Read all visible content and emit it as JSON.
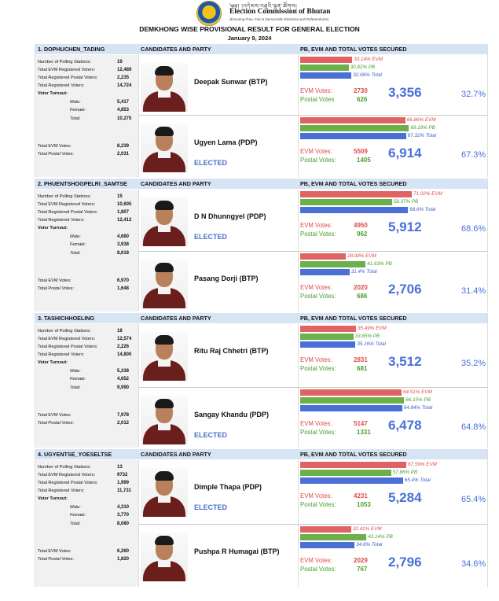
{
  "header": {
    "script_line": "༄༅། །འདེམས་འཐུའི་ལྷན་ཚོགས།",
    "org": "Election Commission of Bhutan",
    "tagline": "(Ensuring Free, Fair & Democratic Elections and Referendums)",
    "title": "DEMKHONG WISE PROVISIONAL RESULT FOR GENERAL ELECTION",
    "date": "January 9, 2024"
  },
  "colors": {
    "evm": "#e06363",
    "pb": "#6bb04a",
    "total": "#4a70d8"
  },
  "labels": {
    "candidates_party": "CANDIDATES AND PARTY",
    "pb_evm_total": "PB, EVM AND TOTAL VOTES SECURED",
    "evm_votes": "EVM Votes:",
    "postal_votes": "Postal Votes",
    "postal_votes_colon": "Postal Votes:",
    "elected": "ELECTED",
    "suffix_evm": "EVM",
    "suffix_pb": "PB",
    "suffix_total": "Total"
  },
  "sections": [
    {
      "name": "1. DOPHUCHEN_TADING",
      "stats": {
        "polling_label": "Number of Polling Stations:",
        "polling": "19",
        "evm_reg_label": "Total EVM Registered Voters:",
        "evm_reg": "12,489",
        "postal_reg_label": "Total Registered Postal Voters:",
        "postal_reg": "2,235",
        "reg_label": "Total Registered Voters:",
        "reg": "14,724",
        "turnout_label": "Voter Turnout:",
        "male_label": "Male:",
        "male": "5,417",
        "female_label": "Female:",
        "female": "4,853",
        "total_label": "Total:",
        "total": "10,270",
        "evm_votes_label": "Total EVM Votes:",
        "evm_votes": "8,239",
        "postal_votes_label": "Total Postal Votes:",
        "postal_votes": "2,031"
      },
      "candidates": [
        {
          "name": "Deepak Sunwar (BTP)",
          "elected": false,
          "evm_pct": 33.14,
          "evm_pct_text": "33.14%",
          "pb_pct": 30.82,
          "pb_pct_text": "30.82%",
          "total_pct": 32.68,
          "total_pct_text": "32.68%",
          "evm": "2730",
          "postal": "626",
          "total": "3,356",
          "share": "32.7%"
        },
        {
          "name": "Ugyen Lama (PDP)",
          "elected": true,
          "evm_pct": 66.86,
          "evm_pct_text": "66.86%",
          "pb_pct": 69.18,
          "pb_pct_text": "69.18%",
          "total_pct": 67.32,
          "total_pct_text": "67.32%",
          "evm": "5509",
          "postal": "1405",
          "total": "6,914",
          "share": "67.3%"
        }
      ]
    },
    {
      "name": "2. PHUENTSHOGPELRI_SAMTSE",
      "stats": {
        "polling_label": "Number of Polling Stations:",
        "polling": "15",
        "evm_reg_label": "Total EVM Registered Voters:",
        "evm_reg": "10,605",
        "postal_reg_label": "Total Registered Postal Voters:",
        "postal_reg": "1,807",
        "reg_label": "Total Registered Voters:",
        "reg": "12,412",
        "turnout_label": "Voter Turnout:",
        "male_label": "Male:",
        "male": "4,680",
        "female_label": "Female:",
        "female": "3,938",
        "total_label": "Total:",
        "total": "8,618",
        "evm_votes_label": "Total EVM Votes:",
        "evm_votes": "6,970",
        "postal_votes_label": "Total Postal Votes:",
        "postal_votes": "1,648"
      },
      "candidates": [
        {
          "name": "D N Dhunngyel (PDP)",
          "elected": true,
          "evm_pct": 71.02,
          "evm_pct_text": "71.02%",
          "pb_pct": 58.37,
          "pb_pct_text": "58.37%",
          "total_pct": 68.6,
          "total_pct_text": "68.6%",
          "evm": "4950",
          "postal": "962",
          "total": "5,912",
          "share": "68.6%"
        },
        {
          "name": "Pasang Dorji (BTP)",
          "elected": false,
          "evm_pct": 28.98,
          "evm_pct_text": "28.98%",
          "pb_pct": 41.63,
          "pb_pct_text": "41.63%",
          "total_pct": 31.4,
          "total_pct_text": "31.4%",
          "evm": "2020",
          "postal": "686",
          "total": "2,706",
          "share": "31.4%"
        }
      ]
    },
    {
      "name": "3. TASHICHHOELING",
      "stats": {
        "polling_label": "Number of Polling Stations:",
        "polling": "18",
        "evm_reg_label": "Total EVM Registered Voters:",
        "evm_reg": "12,574",
        "postal_reg_label": "Total Registered Postal Voters:",
        "postal_reg": "2,226",
        "reg_label": "Total Registered Voters:",
        "reg": "14,800",
        "turnout_label": "Voter Turnout:",
        "male_label": "Male:",
        "male": "5,338",
        "female_label": "Female:",
        "female": "4,652",
        "total_label": "Total:",
        "total": "9,990",
        "evm_votes_label": "Total EVM Votes:",
        "evm_votes": "7,978",
        "postal_votes_label": "Total Postal Votes:",
        "postal_votes": "2,012"
      },
      "candidates": [
        {
          "name": "Ritu Raj Chhetri (BTP)",
          "elected": false,
          "evm_pct": 35.49,
          "evm_pct_text": "35.49%",
          "pb_pct": 33.85,
          "pb_pct_text": "33.85%",
          "total_pct": 35.16,
          "total_pct_text": "35.16%",
          "evm": "2831",
          "postal": "681",
          "total": "3,512",
          "share": "35.2%"
        },
        {
          "name": "Sangay Khandu  (PDP)",
          "elected": true,
          "evm_pct": 64.51,
          "evm_pct_text": "64.51%",
          "pb_pct": 66.15,
          "pb_pct_text": "66.15%",
          "total_pct": 64.84,
          "total_pct_text": "64.84%",
          "evm": "5147",
          "postal": "1331",
          "total": "6,478",
          "share": "64.8%"
        }
      ]
    },
    {
      "name": "4. UGYENTSE_YOESELTSE",
      "stats": {
        "polling_label": "Number of Polling Stations:",
        "polling": "13",
        "evm_reg_label": "Total EVM Registered Voters:",
        "evm_reg": "9732",
        "postal_reg_label": "Total Registered Postal Voters:",
        "postal_reg": "1,999",
        "reg_label": "Total Registered Voters:",
        "reg": "11,731",
        "turnout_label": "Voter Turnout:",
        "male_label": "Male:",
        "male": "4,310",
        "female_label": "Female:",
        "female": "3,770",
        "total_label": "Total:",
        "total": "8,080",
        "evm_votes_label": "Total EVM Votes:",
        "evm_votes": "6,260",
        "postal_votes_label": "Total Postal Votes:",
        "postal_votes": "1,820"
      },
      "candidates": [
        {
          "name": "Dimple Thapa (PDP)",
          "elected": true,
          "evm_pct": 67.59,
          "evm_pct_text": "67.59%",
          "pb_pct": 57.86,
          "pb_pct_text": "57.86%",
          "total_pct": 65.4,
          "total_pct_text": "65.4%",
          "evm": "4231",
          "postal": "1053",
          "total": "5,284",
          "share": "65.4%"
        },
        {
          "name": "Pushpa R Humagai (BTP)",
          "elected": false,
          "evm_pct": 32.41,
          "evm_pct_text": "32.41%",
          "pb_pct": 42.14,
          "pb_pct_text": "42.14%",
          "total_pct": 34.6,
          "total_pct_text": "34.6%",
          "evm": "2029",
          "postal": "767",
          "total": "2,796",
          "share": "34.6%"
        }
      ]
    }
  ]
}
